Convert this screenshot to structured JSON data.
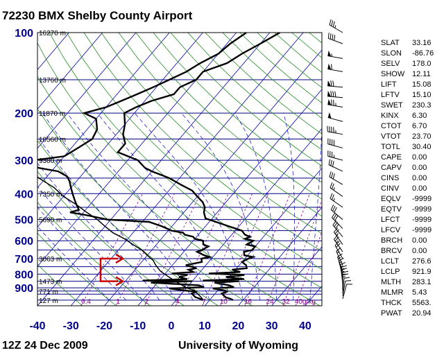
{
  "title": "72230 BMX Shelby County Airport",
  "footer": {
    "time": "12Z 24 Dec 2009",
    "source": "University of Wyoming"
  },
  "colors": {
    "isobar": "#000080",
    "isotherm": "#0000b0",
    "dry_adiabat": "#228b22",
    "moist_adiabat": "#0000cd",
    "mixing_ratio": "#8b008b",
    "profile": "#000000",
    "arrow": "#cc0000",
    "axis_label": "#00008b"
  },
  "icons": [
    "wind-barb-icon",
    "red-bracket-arrow-icon"
  ],
  "chart_data": {
    "type": "line",
    "xlabel": "",
    "ylabel": "",
    "x_ticks": [
      "-40",
      "-30",
      "-20",
      "-10",
      "0",
      "10",
      "20",
      "30",
      "40"
    ],
    "xlim": [
      -40,
      45
    ],
    "ylim": [
      1050,
      100
    ],
    "y_scale": "log",
    "y_ticks": [
      "100",
      "200",
      "300",
      "400",
      "500",
      "600",
      "700",
      "800",
      "900"
    ],
    "height_labels": [
      {
        "p": 100,
        "text": "16270 m"
      },
      {
        "p": 150,
        "text": "13760 m"
      },
      {
        "p": 200,
        "text": "11870 m"
      },
      {
        "p": 250,
        "text": "10560 m"
      },
      {
        "p": 300,
        "text": "9380 m"
      },
      {
        "p": 400,
        "text": "7350 m"
      },
      {
        "p": 500,
        "text": "5690 m"
      },
      {
        "p": 700,
        "text": "3063 m"
      },
      {
        "p": 850,
        "text": "1473 m"
      },
      {
        "p": 925,
        "text": "771 m"
      },
      {
        "p": 1000,
        "text": "127 m"
      }
    ],
    "mixing_ratio_labels": [
      "0.4",
      "1",
      "2",
      "4",
      "7",
      "10",
      "16",
      "24",
      "32",
      "40g/kg"
    ],
    "grid": true,
    "series": [
      {
        "role": "temperature",
        "points": [
          [
            17,
            1000
          ],
          [
            16,
            990
          ],
          [
            14,
            975
          ],
          [
            13,
            960
          ],
          [
            12,
            945
          ],
          [
            13,
            930
          ],
          [
            12,
            920
          ],
          [
            8,
            905
          ],
          [
            14,
            895
          ],
          [
            12,
            880
          ],
          [
            7,
            860
          ],
          [
            14,
            850
          ],
          [
            3,
            845
          ],
          [
            15,
            835
          ],
          [
            9,
            820
          ],
          [
            14,
            805
          ],
          [
            3,
            795
          ],
          [
            12,
            785
          ],
          [
            9,
            770
          ],
          [
            13,
            760
          ],
          [
            12,
            740
          ],
          [
            10,
            720
          ],
          [
            11,
            700
          ],
          [
            12,
            690
          ],
          [
            9,
            680
          ],
          [
            8,
            660
          ],
          [
            10,
            650
          ],
          [
            10,
            630
          ],
          [
            7,
            620
          ],
          [
            8,
            600
          ],
          [
            5,
            590
          ],
          [
            6,
            580
          ],
          [
            4,
            570
          ],
          [
            3,
            560
          ],
          [
            2,
            550
          ],
          [
            -3,
            530
          ],
          [
            -8,
            510
          ],
          [
            -12,
            495
          ],
          [
            -14,
            470
          ],
          [
            -15,
            450
          ],
          [
            -17,
            430
          ],
          [
            -20,
            410
          ],
          [
            -23,
            390
          ],
          [
            -28,
            370
          ],
          [
            -33,
            350
          ],
          [
            -40,
            330
          ],
          [
            -43,
            320
          ],
          [
            -47,
            300
          ],
          [
            -55,
            280
          ],
          [
            -55,
            260
          ],
          [
            -58,
            240
          ],
          [
            -60,
            220
          ],
          [
            -63,
            200
          ],
          [
            -61,
            190
          ],
          [
            -58,
            180
          ],
          [
            -53,
            170
          ],
          [
            -53,
            160
          ],
          [
            -50,
            150
          ],
          [
            -50,
            140
          ],
          [
            -45,
            130
          ],
          [
            -43,
            120
          ],
          [
            -40,
            110
          ],
          [
            -37,
            100
          ]
        ]
      },
      {
        "role": "dewpoint",
        "points": [
          [
            8,
            1000
          ],
          [
            7,
            990
          ],
          [
            5,
            975
          ],
          [
            4,
            960
          ],
          [
            3,
            945
          ],
          [
            4,
            930
          ],
          [
            0,
            920
          ],
          [
            -5,
            905
          ],
          [
            5,
            895
          ],
          [
            3,
            880
          ],
          [
            -12,
            860
          ],
          [
            0,
            850
          ],
          [
            -15,
            845
          ],
          [
            -2,
            835
          ],
          [
            -5,
            820
          ],
          [
            -3,
            805
          ],
          [
            -8,
            795
          ],
          [
            -2,
            785
          ],
          [
            -4,
            770
          ],
          [
            -2,
            760
          ],
          [
            -6,
            740
          ],
          [
            -2,
            720
          ],
          [
            -3,
            700
          ],
          [
            -1,
            690
          ],
          [
            -3,
            680
          ],
          [
            -6,
            660
          ],
          [
            -5,
            650
          ],
          [
            -4,
            630
          ],
          [
            -6,
            620
          ],
          [
            -7,
            600
          ],
          [
            -10,
            590
          ],
          [
            -11,
            580
          ],
          [
            -14,
            570
          ],
          [
            -15,
            560
          ],
          [
            -19,
            550
          ],
          [
            -23,
            530
          ],
          [
            -28,
            510
          ],
          [
            -41,
            500
          ],
          [
            -49,
            480
          ],
          [
            -54,
            470
          ],
          [
            -52,
            460
          ],
          [
            -54,
            440
          ],
          [
            -56,
            420
          ],
          [
            -58,
            400
          ],
          [
            -60,
            380
          ],
          [
            -62,
            360
          ],
          [
            -64,
            345
          ],
          [
            -68,
            330
          ],
          [
            -75,
            320
          ],
          [
            -78,
            300
          ],
          [
            -70,
            290
          ],
          [
            -68,
            270
          ],
          [
            -66,
            250
          ],
          [
            -67,
            230
          ],
          [
            -70,
            210
          ],
          [
            -75,
            200
          ],
          [
            -70,
            190
          ],
          [
            -67,
            180
          ],
          [
            -64,
            170
          ],
          [
            -61,
            160
          ],
          [
            -58,
            150
          ],
          [
            -55,
            140
          ],
          [
            -53,
            130
          ],
          [
            -50,
            120
          ],
          [
            -49,
            110
          ],
          [
            -47,
            100
          ]
        ]
      },
      {
        "role": "parcel",
        "points": [
          [
            8,
            1000
          ],
          [
            7,
            980
          ],
          [
            5,
            950
          ],
          [
            3,
            920
          ],
          [
            0,
            900
          ],
          [
            -4,
            860
          ],
          [
            -8,
            820
          ],
          [
            -12,
            780
          ],
          [
            -15,
            740
          ],
          [
            -17,
            710
          ],
          [
            -20,
            680
          ],
          [
            -23,
            650
          ],
          [
            -27,
            620
          ],
          [
            -31,
            590
          ],
          [
            -36,
            560
          ],
          [
            -40,
            530
          ],
          [
            -44,
            500
          ],
          [
            -49,
            470
          ],
          [
            -54,
            440
          ],
          [
            -60,
            410
          ],
          [
            -65,
            380
          ],
          [
            -72,
            350
          ],
          [
            -78,
            320
          ],
          [
            -85,
            290
          ],
          [
            -92,
            260
          ],
          [
            -99,
            240
          ],
          [
            -106,
            220
          ],
          [
            -113,
            200
          ]
        ]
      }
    ],
    "wind_barbs": [
      {
        "p": 100,
        "dir": 300,
        "kt": 35
      },
      {
        "p": 110,
        "dir": 290,
        "kt": 40
      },
      {
        "p": 125,
        "dir": 280,
        "kt": 55
      },
      {
        "p": 140,
        "dir": 280,
        "kt": 60
      },
      {
        "p": 160,
        "dir": 275,
        "kt": 70
      },
      {
        "p": 175,
        "dir": 275,
        "kt": 80
      },
      {
        "p": 190,
        "dir": 280,
        "kt": 75
      },
      {
        "p": 215,
        "dir": 285,
        "kt": 50
      },
      {
        "p": 240,
        "dir": 280,
        "kt": 45
      },
      {
        "p": 270,
        "dir": 285,
        "kt": 40
      },
      {
        "p": 300,
        "dir": 285,
        "kt": 35
      },
      {
        "p": 330,
        "dir": 295,
        "kt": 30
      },
      {
        "p": 370,
        "dir": 300,
        "kt": 30
      },
      {
        "p": 410,
        "dir": 305,
        "kt": 25
      },
      {
        "p": 450,
        "dir": 305,
        "kt": 25
      },
      {
        "p": 500,
        "dir": 310,
        "kt": 30
      },
      {
        "p": 540,
        "dir": 315,
        "kt": 30
      },
      {
        "p": 580,
        "dir": 320,
        "kt": 30
      },
      {
        "p": 620,
        "dir": 325,
        "kt": 25
      },
      {
        "p": 660,
        "dir": 325,
        "kt": 25
      },
      {
        "p": 700,
        "dir": 330,
        "kt": 20
      },
      {
        "p": 740,
        "dir": 335,
        "kt": 15
      },
      {
        "p": 780,
        "dir": 340,
        "kt": 15
      },
      {
        "p": 810,
        "dir": 345,
        "kt": 15
      },
      {
        "p": 840,
        "dir": 350,
        "kt": 15
      },
      {
        "p": 860,
        "dir": 355,
        "kt": 15
      },
      {
        "p": 880,
        "dir": 355,
        "kt": 15
      },
      {
        "p": 900,
        "dir": 0,
        "kt": 15
      },
      {
        "p": 920,
        "dir": 0,
        "kt": 15
      },
      {
        "p": 945,
        "dir": 5,
        "kt": 10
      },
      {
        "p": 965,
        "dir": 10,
        "kt": 10
      },
      {
        "p": 990,
        "dir": 15,
        "kt": 10
      }
    ]
  },
  "indices": [
    {
      "name": "SLAT",
      "value": "33.16"
    },
    {
      "name": "SLON",
      "value": "-86.76"
    },
    {
      "name": "SELV",
      "value": "178.0"
    },
    {
      "name": "SHOW",
      "value": "12.11"
    },
    {
      "name": "LIFT",
      "value": "15.08"
    },
    {
      "name": "LFTV",
      "value": "15.10"
    },
    {
      "name": "SWET",
      "value": "230.3"
    },
    {
      "name": "KINX",
      "value": "6.30"
    },
    {
      "name": "CTOT",
      "value": "6.70"
    },
    {
      "name": "VTOT",
      "value": "23.70"
    },
    {
      "name": "TOTL",
      "value": "30.40"
    },
    {
      "name": "CAPE",
      "value": "0.00"
    },
    {
      "name": "CAPV",
      "value": "0.00"
    },
    {
      "name": "CINS",
      "value": "0.00"
    },
    {
      "name": "CINV",
      "value": "0.00"
    },
    {
      "name": "EQLV",
      "value": "-9999"
    },
    {
      "name": "EQTV",
      "value": "-9999"
    },
    {
      "name": "LFCT",
      "value": "-9999"
    },
    {
      "name": "LFCV",
      "value": "-9999"
    },
    {
      "name": "BRCH",
      "value": "0.00"
    },
    {
      "name": "BRCV",
      "value": "0.00"
    },
    {
      "name": "LCLT",
      "value": "276.6"
    },
    {
      "name": "LCLP",
      "value": "921.9"
    },
    {
      "name": "MLTH",
      "value": "283.1"
    },
    {
      "name": "MLMR",
      "value": "5.43"
    },
    {
      "name": "THCK",
      "value": "5563."
    },
    {
      "name": "PWAT",
      "value": "20.94"
    }
  ]
}
